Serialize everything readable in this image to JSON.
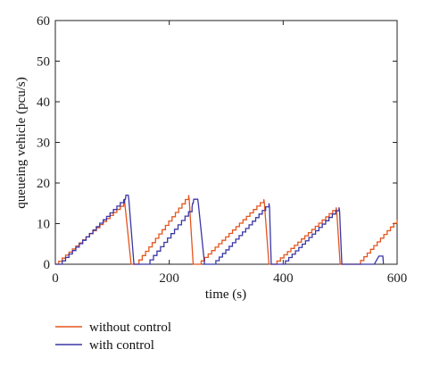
{
  "chart_data": {
    "type": "line",
    "title": "",
    "xlabel": "time (s)",
    "ylabel": "queueing vehicle (pcu/s)",
    "xlim": [
      0,
      600
    ],
    "ylim": [
      0,
      60
    ],
    "xticks": [
      0,
      200,
      400,
      600
    ],
    "yticks": [
      0,
      10,
      20,
      30,
      40,
      50,
      60
    ],
    "grid": false,
    "legend_position": "bottom-left, below plot",
    "step_width": 6,
    "series": [
      {
        "name": "without control",
        "color": "#e5541c",
        "points": [
          [
            0,
            0
          ],
          [
            120,
            15
          ],
          [
            121,
            16
          ],
          [
            122,
            15
          ],
          [
            133,
            0
          ],
          [
            141,
            0
          ],
          [
            234,
            17
          ],
          [
            235,
            16
          ],
          [
            242,
            0
          ],
          [
            250,
            0
          ],
          [
            366,
            16
          ],
          [
            367,
            15
          ],
          [
            375,
            0
          ],
          [
            383,
            0
          ],
          [
            493,
            14
          ],
          [
            494,
            13
          ],
          [
            500,
            0
          ],
          [
            530,
            0
          ],
          [
            600,
            11
          ]
        ]
      },
      {
        "name": "with control",
        "color": "#3a36a6",
        "points": [
          [
            0,
            0
          ],
          [
            6,
            0
          ],
          [
            120,
            16
          ],
          [
            121,
            15
          ],
          [
            122,
            16
          ],
          [
            123,
            16
          ],
          [
            124,
            17
          ],
          [
            128,
            17
          ],
          [
            129,
            16
          ],
          [
            138,
            0
          ],
          [
            160,
            0
          ],
          [
            240,
            14
          ],
          [
            241,
            15
          ],
          [
            242,
            15
          ],
          [
            243,
            16
          ],
          [
            250,
            16
          ],
          [
            251,
            15
          ],
          [
            262,
            0
          ],
          [
            276,
            0
          ],
          [
            375,
            15
          ],
          [
            376,
            14
          ],
          [
            379,
            0
          ],
          [
            398,
            0
          ],
          [
            498,
            14
          ],
          [
            499,
            13
          ],
          [
            503,
            0
          ],
          [
            510,
            0
          ],
          [
            560,
            0
          ],
          [
            568,
            2
          ],
          [
            575,
            2
          ],
          [
            576,
            0
          ]
        ]
      }
    ]
  }
}
